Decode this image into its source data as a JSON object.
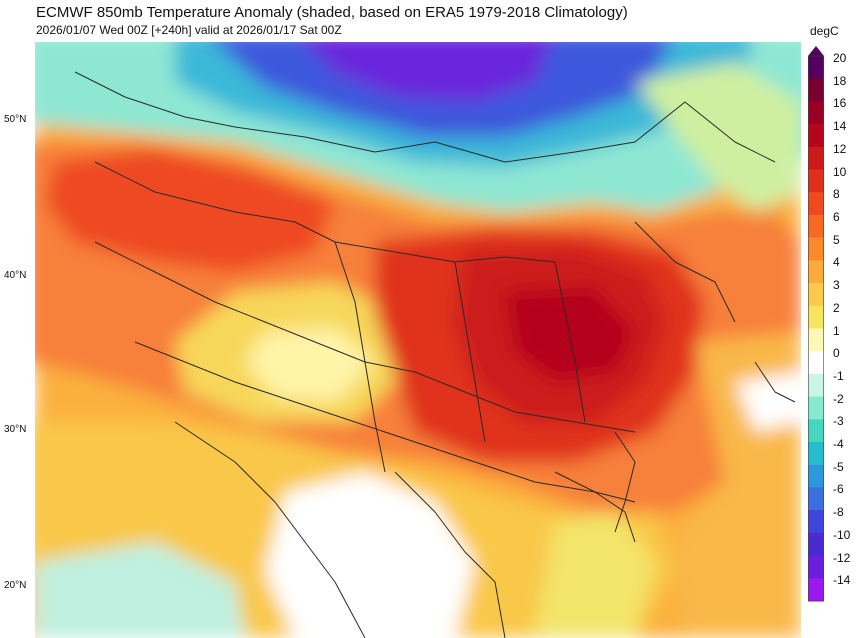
{
  "header": {
    "title": "ECMWF 850mb Temperature Anomaly (shaded, based on ERA5 1979-2018 Climatology)",
    "subtitle": "2026/01/07 Wed 00Z [+240h] valid at 2026/01/17 Sat 00Z"
  },
  "map": {
    "lat_labels": [
      "50°N",
      "40°N",
      "30°N",
      "20°N"
    ]
  },
  "colorbar": {
    "unit": "degC",
    "ticks": [
      "20",
      "18",
      "16",
      "14",
      "12",
      "10",
      "8",
      "6",
      "5",
      "4",
      "3",
      "2",
      "1",
      "0",
      "-1",
      "-2",
      "-3",
      "-4",
      "-5",
      "-6",
      "-8",
      "-10",
      "-12",
      "-14"
    ],
    "colors": [
      "#55005e",
      "#7a0030",
      "#9a0024",
      "#b5061e",
      "#cc1a1a",
      "#e0301c",
      "#ef4a1e",
      "#f86a24",
      "#fa8a2c",
      "#fbab3a",
      "#fcc94a",
      "#f7e45e",
      "#fff7b6",
      "#ffffff",
      "#c9f5e6",
      "#86ead0",
      "#46d6c0",
      "#25bcd0",
      "#2b98dd",
      "#3a6fe0",
      "#3e45d8",
      "#4a2ad1",
      "#6a1ee0",
      "#9b18ee"
    ]
  }
}
